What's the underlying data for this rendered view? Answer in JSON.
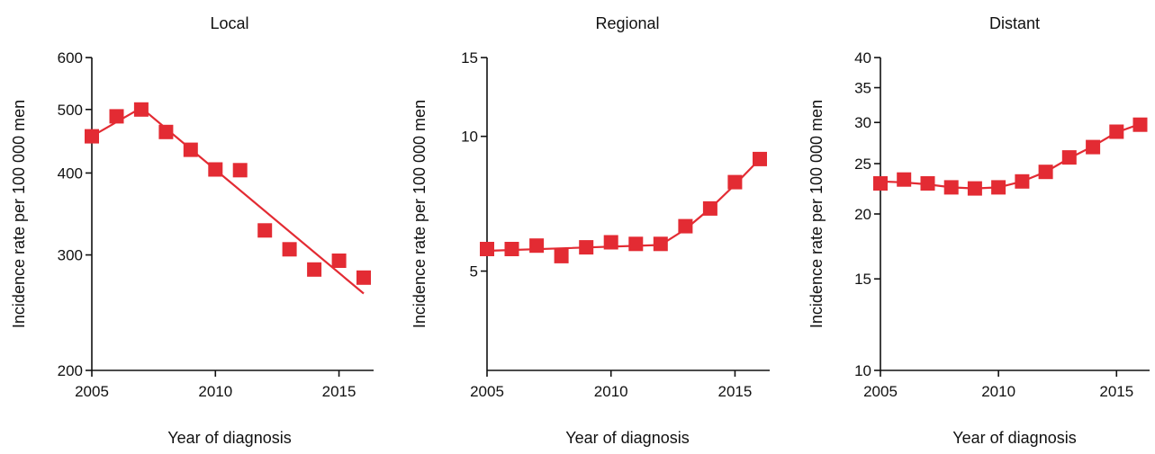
{
  "chart_data": [
    {
      "type": "line",
      "title": "Local",
      "xlabel": "Year of diagnosis",
      "ylabel": "Incidence rate per 100 000 men",
      "yscale": "log",
      "xlim": [
        2005,
        2016.4
      ],
      "ylim": [
        200,
        600
      ],
      "xticks": [
        2005,
        2010,
        2015
      ],
      "yticks": [
        200,
        300,
        400,
        500,
        600
      ],
      "marker_color": "#e32b33",
      "line_color": "#e32b33",
      "series": [
        {
          "type": "scatter",
          "x": [
            2005,
            2006,
            2007,
            2008,
            2009,
            2010,
            2011,
            2012,
            2013,
            2014,
            2015,
            2016
          ],
          "y": [
            455,
            488,
            500,
            462,
            434,
            405,
            404,
            327,
            306,
            285,
            294,
            277
          ]
        },
        {
          "type": "line",
          "x": [
            2005,
            2007,
            2016
          ],
          "y": [
            455,
            503,
            262
          ]
        }
      ]
    },
    {
      "type": "line",
      "title": "Regional",
      "xlabel": "Year of diagnosis",
      "ylabel": "Incidence rate per 100 000 men",
      "yscale": "log",
      "xlim": [
        2005,
        2016.4
      ],
      "ylim": [
        3,
        15
      ],
      "xticks": [
        2005,
        2010,
        2015
      ],
      "yticks": [
        5,
        10,
        15
      ],
      "marker_color": "#e32b33",
      "line_color": "#e32b33",
      "series": [
        {
          "type": "scatter",
          "x": [
            2005,
            2006,
            2007,
            2008,
            2009,
            2010,
            2011,
            2012,
            2013,
            2014,
            2015,
            2016
          ],
          "y": [
            5.6,
            5.6,
            5.7,
            5.4,
            5.65,
            5.8,
            5.75,
            5.75,
            6.3,
            6.9,
            7.9,
            8.9
          ]
        },
        {
          "type": "line",
          "x": [
            2005,
            2012,
            2013,
            2014,
            2015,
            2016
          ],
          "y": [
            5.55,
            5.72,
            6.2,
            6.9,
            7.8,
            8.9
          ]
        }
      ]
    },
    {
      "type": "line",
      "title": "Distant",
      "xlabel": "Year of diagnosis",
      "ylabel": "Incidence rate per 100 000 men",
      "yscale": "log",
      "xlim": [
        2005,
        2016.4
      ],
      "ylim": [
        10,
        40
      ],
      "xticks": [
        2005,
        2010,
        2015
      ],
      "yticks": [
        10,
        15,
        20,
        25,
        30,
        35,
        40
      ],
      "marker_color": "#e32b33",
      "line_color": "#e32b33",
      "series": [
        {
          "type": "scatter",
          "x": [
            2005,
            2006,
            2007,
            2008,
            2009,
            2010,
            2011,
            2012,
            2013,
            2014,
            2015,
            2016
          ],
          "y": [
            22.9,
            23.3,
            22.9,
            22.5,
            22.4,
            22.5,
            23.1,
            24.1,
            25.7,
            26.9,
            28.8,
            29.7
          ]
        },
        {
          "type": "line",
          "x": [
            2005,
            2006,
            2007,
            2008,
            2009,
            2010,
            2011,
            2012,
            2013,
            2014,
            2015,
            2016
          ],
          "y": [
            23.1,
            23.0,
            22.8,
            22.5,
            22.4,
            22.5,
            23.1,
            24.1,
            25.6,
            27.0,
            28.7,
            29.8
          ]
        }
      ]
    }
  ]
}
